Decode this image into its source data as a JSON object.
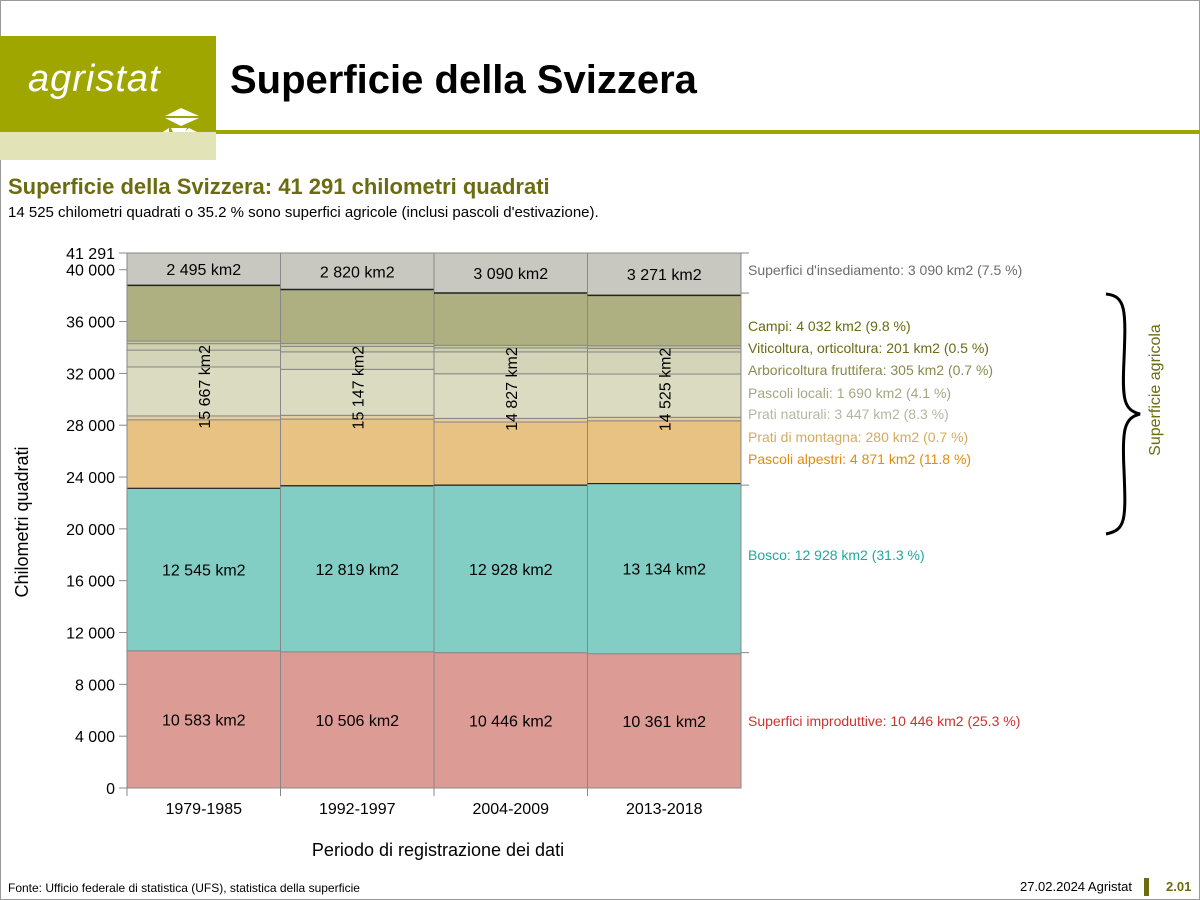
{
  "header": {
    "logo_text": "agristat",
    "title": "Superficie della Svizzera"
  },
  "subtitle": "Superficie della Svizzera: 41 291 chilometri quadrati",
  "description": "14 525 chilometri quadrati o 35.2 % sono superfici agricole (inclusi pascoli d'estivazione).",
  "footer": {
    "source": "Fonte: Ufficio federale di statistica (UFS), statistica della superficie",
    "date": "27.02.2024 Agristat",
    "page": "2.01"
  },
  "chart_data": {
    "type": "bar",
    "stacked": true,
    "xlabel": "Periodo di registrazione dei dati",
    "ylabel": "Chilometri quadrati",
    "ylim": [
      0,
      41291
    ],
    "yticks": [
      "0",
      "4 000",
      "8 000",
      "12 000",
      "16 000",
      "20 000",
      "24 000",
      "28 000",
      "32 000",
      "36 000",
      "40 000",
      "41 291"
    ],
    "ytick_values": [
      0,
      4000,
      8000,
      12000,
      16000,
      20000,
      24000,
      28000,
      32000,
      36000,
      40000,
      41291
    ],
    "categories": [
      "1979-1985",
      "1992-1997",
      "2004-2009",
      "2013-2018"
    ],
    "series": [
      {
        "name": "Superfici improduttive",
        "color": "#dc9b95",
        "text_color": "#d03030",
        "values": [
          10583,
          10506,
          10446,
          10361
        ],
        "legend": "Superfici improduttive: 10 446 km2 (25.3 %)"
      },
      {
        "name": "Bosco",
        "color": "#83cec4",
        "text_color": "#1fa89e",
        "values": [
          12545,
          12819,
          12928,
          13134
        ],
        "legend": "Bosco: 12 928 km2 (31.3 %)"
      },
      {
        "name": "Pascoli alpestri",
        "color": "#e8c283",
        "text_color": "#e08c0c",
        "values": [
          5287,
          5147,
          4871,
          4845
        ],
        "legend": "Pascoli alpestri: 4 871 km2 (11.8 %)"
      },
      {
        "name": "Prati di montagna",
        "color": "#e6cd9c",
        "text_color": "#d4aa60",
        "values": [
          300,
          290,
          280,
          270
        ],
        "legend": "Prati di montagna: 280 km2 (0.7 %)"
      },
      {
        "name": "Prati naturali",
        "color": "#dadbc1",
        "text_color": "#b6b6a0",
        "values": [
          3780,
          3550,
          3447,
          3340
        ],
        "legend": "Prati naturali: 3 447 km2 (8.3 %)"
      },
      {
        "name": "Pascoli locali",
        "color": "#d4d5b8",
        "text_color": "#a6a686",
        "values": [
          1300,
          1350,
          1690,
          1700
        ],
        "legend": "Pascoli locali: 1 690 km2 (4.1 %)"
      },
      {
        "name": "Arboricoltura fruttifera",
        "color": "#cfd0b0",
        "text_color": "#8a8a4e",
        "values": [
          500,
          420,
          305,
          280
        ],
        "legend": "Arboricoltura fruttifera: 305 km2 (0.7 %)"
      },
      {
        "name": "Viticoltura, orticoltura",
        "color": "#c8c9a2",
        "text_color": "#6b6b18",
        "values": [
          200,
          220,
          201,
          200
        ],
        "legend": "Viticoltura, orticoltura: 201 km2 (0.5 %)"
      },
      {
        "name": "Campi",
        "color": "#afb081",
        "text_color": "#6b6b10",
        "values": [
          4300,
          4170,
          4032,
          3890
        ],
        "legend": "Campi: 4 032 km2 (9.8 %)"
      },
      {
        "name": "Superfici d'insediamento",
        "color": "#c8c8c1",
        "text_color": "#6d6d6d",
        "values": [
          2495,
          2820,
          3090,
          3271
        ],
        "legend": "Superfici d'insediamento: 3 090 km2 (7.5 %)"
      }
    ],
    "data_labels": {
      "Superfici d'insediamento": [
        "2 495 km2",
        "2 820 km2",
        "3 090 km2",
        "3 271 km2"
      ],
      "Superficie agricola": [
        "15 667 km2",
        "15 147 km2",
        "14 827 km2",
        "14 525 km2"
      ],
      "Bosco": [
        "12 545 km2",
        "12 819 km2",
        "12 928 km2",
        "13 134 km2"
      ],
      "Superfici improduttive": [
        "10 583 km2",
        "10 506 km2",
        "10 446 km2",
        "10 361 km2"
      ]
    },
    "bracket_label": "Superficie agricola",
    "bracket_color": "#6b6b10"
  }
}
